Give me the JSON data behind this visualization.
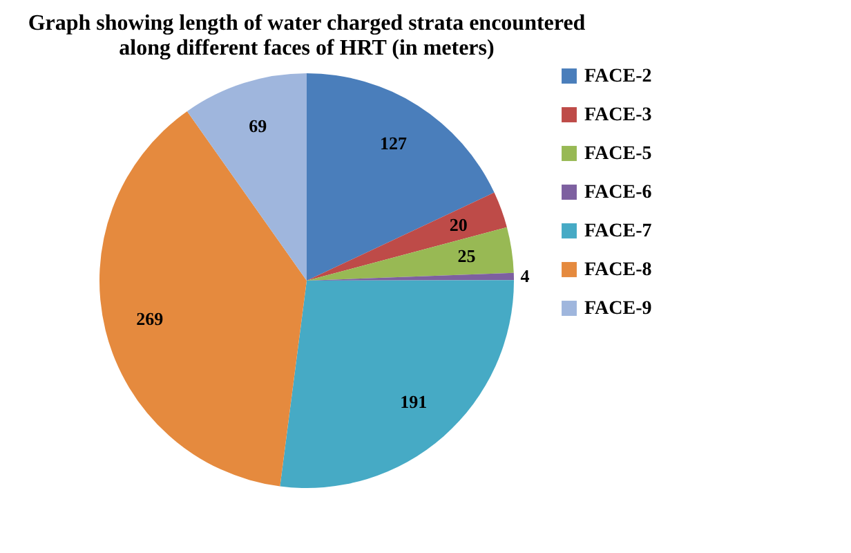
{
  "chart_data": {
    "type": "pie",
    "title": [
      "Graph showing length of water charged strata encountered",
      "along different faces of HRT (in meters)"
    ],
    "categories": [
      "FACE-2",
      "FACE-3",
      "FACE-5",
      "FACE-6",
      "FACE-7",
      "FACE-8",
      "FACE-9"
    ],
    "values": [
      127,
      20,
      25,
      4,
      191,
      269,
      69
    ],
    "colors": [
      "#4a7ebb",
      "#be4b48",
      "#98b954",
      "#7d60a0",
      "#46aac5",
      "#e58a3e",
      "#9fb6dd"
    ],
    "data_labels": true,
    "legend": "right"
  }
}
